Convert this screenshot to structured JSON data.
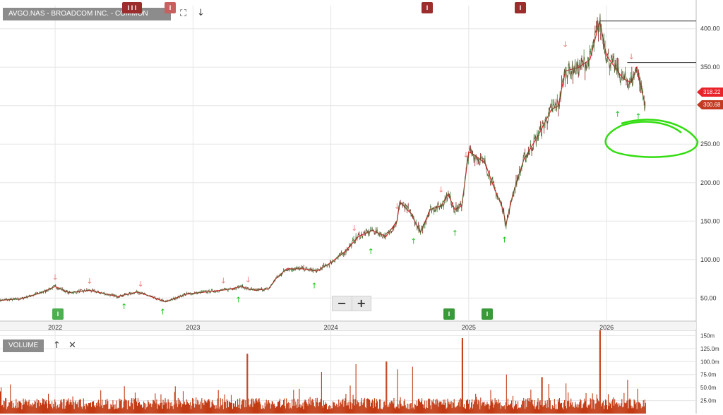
{
  "header": {
    "symbol_label": "AVGO.NAS - BROADCOM INC. - COMMON STOCK",
    "fullscreen_icon": "fullscreen-icon",
    "download_icon": "arrow-down-icon"
  },
  "volume_panel": {
    "label": "VOLUME",
    "up_icon": "arrow-up-icon",
    "close_icon": "close-icon"
  },
  "zoom": {
    "minus": "−",
    "plus": "+"
  },
  "price_tags": [
    {
      "text": "318.22",
      "color": "#e8232a"
    },
    {
      "text": "300.68",
      "color": "#c23b22"
    }
  ],
  "event_badges": {
    "top": [
      {
        "text": "I I I",
        "color": "#9b2d2d"
      },
      {
        "text": "I",
        "color": "#c96060"
      },
      {
        "text": "I",
        "color": "#9b2d2d"
      },
      {
        "text": "I",
        "color": "#9b2d2d"
      }
    ],
    "bottom": [
      {
        "text": "I",
        "color": "#4caf50"
      },
      {
        "text": "I",
        "color": "#3a9a3a"
      },
      {
        "text": "I",
        "color": "#3a9a3a"
      }
    ]
  },
  "colors": {
    "grid": "#e6e6e6",
    "price_line": "#5a5a30",
    "moving_average": "#e8232a",
    "volume_bars": "#c23b14",
    "down_arrow": "#f08080",
    "up_arrow": "#22c322",
    "annotation_circle": "#33dd11",
    "resistance_line": "#333333"
  },
  "chart_data": [
    {
      "type": "line",
      "title": "AVGO.NAS - BROADCOM INC. - COMMON STOCK",
      "x_ticks": [
        "2022",
        "2023",
        "2024",
        "2025",
        "2026"
      ],
      "y_ticks": [
        "50.00",
        "100.00",
        "150.00",
        "200.00",
        "250.00",
        "300.00",
        "350.00",
        "400.00"
      ],
      "ylim": [
        20,
        430
      ],
      "xlim": [
        2021.6,
        2026.65
      ],
      "grid": true,
      "series": [
        {
          "points": [
            [
              2021.6,
              47
            ],
            [
              2021.75,
              49
            ],
            [
              2021.9,
              57
            ],
            [
              2022.0,
              65
            ],
            [
              2022.1,
              57
            ],
            [
              2022.25,
              60
            ],
            [
              2022.45,
              52
            ],
            [
              2022.6,
              58
            ],
            [
              2022.8,
              45
            ],
            [
              2022.95,
              55
            ],
            [
              2023.1,
              58
            ],
            [
              2023.25,
              61
            ],
            [
              2023.35,
              65
            ],
            [
              2023.4,
              62
            ],
            [
              2023.45,
              60
            ],
            [
              2023.55,
              62
            ],
            [
              2023.6,
              75
            ],
            [
              2023.68,
              88
            ],
            [
              2023.8,
              88
            ],
            [
              2023.9,
              85
            ],
            [
              2024.0,
              96
            ],
            [
              2024.1,
              110
            ],
            [
              2024.2,
              130
            ],
            [
              2024.3,
              138
            ],
            [
              2024.4,
              130
            ],
            [
              2024.48,
              150
            ],
            [
              2024.5,
              175
            ],
            [
              2024.58,
              160
            ],
            [
              2024.65,
              135
            ],
            [
              2024.72,
              165
            ],
            [
              2024.8,
              170
            ],
            [
              2024.85,
              185
            ],
            [
              2024.9,
              165
            ],
            [
              2024.95,
              170
            ],
            [
              2025.0,
              240
            ],
            [
              2025.05,
              235
            ],
            [
              2025.12,
              225
            ],
            [
              2025.18,
              195
            ],
            [
              2025.25,
              165
            ],
            [
              2025.27,
              145
            ],
            [
              2025.32,
              185
            ],
            [
              2025.4,
              230
            ],
            [
              2025.5,
              260
            ],
            [
              2025.6,
              295
            ],
            [
              2025.65,
              300
            ],
            [
              2025.7,
              345
            ],
            [
              2025.8,
              350
            ],
            [
              2025.88,
              360
            ],
            [
              2025.95,
              410
            ],
            [
              2026.0,
              365
            ],
            [
              2026.08,
              345
            ],
            [
              2026.12,
              335
            ],
            [
              2026.18,
              330
            ],
            [
              2026.22,
              350
            ],
            [
              2026.25,
              325
            ],
            [
              2026.28,
              300
            ]
          ]
        }
      ],
      "last_values": [
        318.22,
        300.68
      ]
    },
    {
      "type": "bar",
      "title": "VOLUME",
      "y_ticks": [
        "25.0m",
        "50.0m",
        "75.0m",
        "100.0m",
        "125.0m",
        "150m"
      ],
      "ylim": [
        0,
        160
      ],
      "spikes": [
        [
          2023.39,
          115
        ],
        [
          2023.93,
          80
        ],
        [
          2024.18,
          95
        ],
        [
          2024.4,
          100
        ],
        [
          2024.48,
          85
        ],
        [
          2024.59,
          90
        ],
        [
          2024.95,
          145
        ],
        [
          2025.27,
          75
        ],
        [
          2025.53,
          70
        ],
        [
          2025.95,
          160
        ],
        [
          2026.15,
          65
        ]
      ]
    }
  ]
}
